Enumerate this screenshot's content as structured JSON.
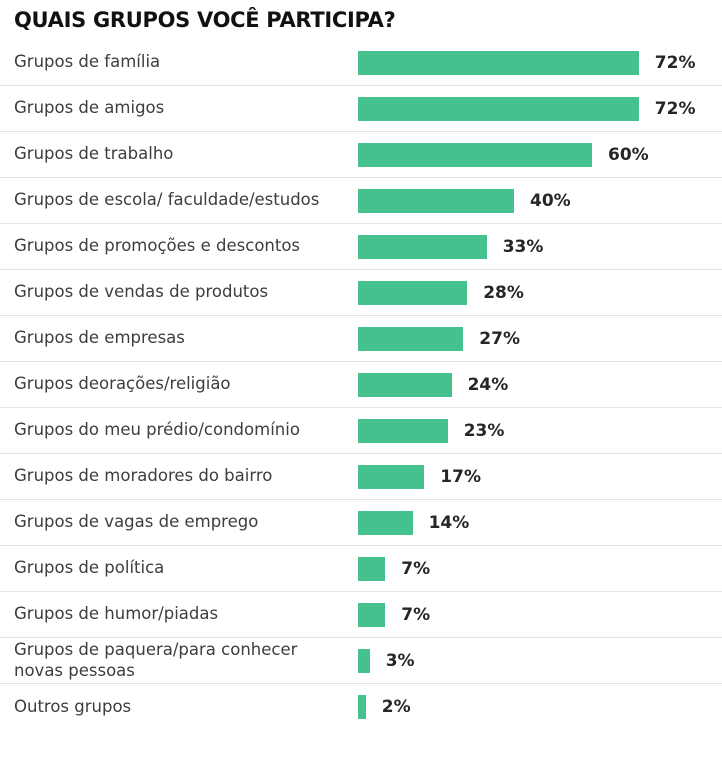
{
  "chart_data": {
    "type": "bar",
    "orientation": "horizontal",
    "title": "QUAIS GRUPOS VOCÊ PARTICIPA?",
    "xlabel": "",
    "ylabel": "",
    "xlim": [
      0,
      100
    ],
    "grid": false,
    "legend": false,
    "bar_color": "#45c18d",
    "value_suffix": "%",
    "categories": [
      "Grupos de família",
      "Grupos de amigos",
      "Grupos de trabalho",
      "Grupos de escola/ faculdade/estudos",
      "Grupos de promoções e descontos",
      "Grupos de vendas de produtos",
      "Grupos de empresas",
      "Grupos deorações/religião",
      "Grupos do meu prédio/condomínio",
      "Grupos de moradores do bairro",
      "Grupos de vagas de emprego",
      "Grupos de política",
      "Grupos de humor/piadas",
      "Grupos de paquera/para conhecer novas pessoas",
      "Outros grupos"
    ],
    "values": [
      72,
      72,
      60,
      40,
      33,
      28,
      27,
      24,
      23,
      17,
      14,
      7,
      7,
      3,
      2
    ],
    "value_labels": [
      "72%",
      "72%",
      "60%",
      "40%",
      "33%",
      "28%",
      "27%",
      "24%",
      "23%",
      "17%",
      "14%",
      "7%",
      "7%",
      "3%",
      "2%"
    ]
  }
}
